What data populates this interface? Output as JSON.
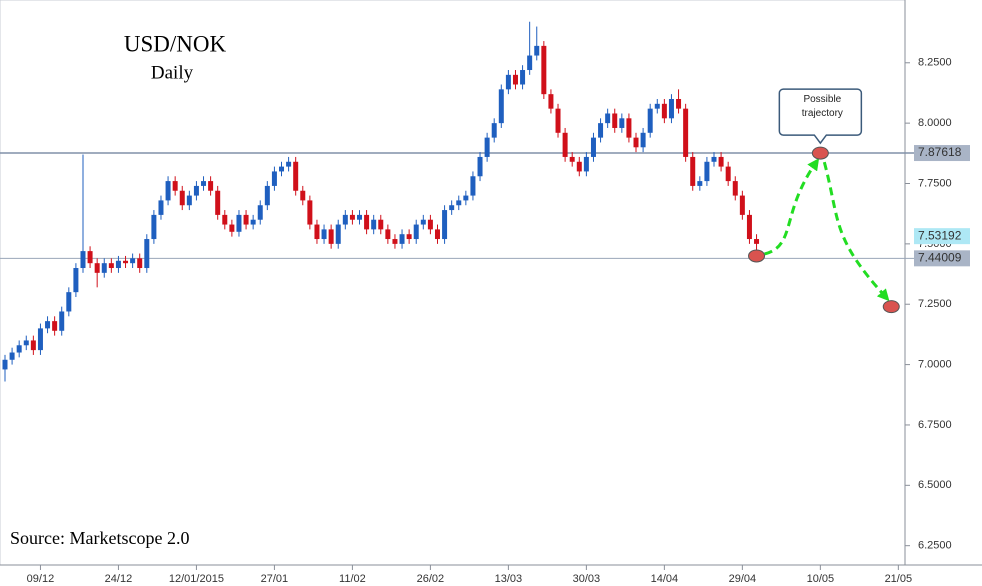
{
  "chart_data": {
    "type": "candlestick",
    "title": "USD/NOK",
    "subtitle": "Daily",
    "source": "Source: Marketscope 2.0",
    "annotation": "Possible trajectory",
    "categories": [
      null,
      null,
      null,
      null,
      null,
      "09/12",
      null,
      null,
      null,
      null,
      null,
      null,
      null,
      null,
      null,
      null,
      "24/12",
      null,
      null,
      null,
      null,
      null,
      null,
      null,
      null,
      null,
      null,
      "12/01/2015",
      null,
      null,
      null,
      null,
      null,
      null,
      null,
      null,
      null,
      null,
      "27/01",
      null,
      null,
      null,
      null,
      null,
      null,
      null,
      null,
      null,
      null,
      "11/02",
      null,
      null,
      null,
      null,
      null,
      null,
      null,
      null,
      null,
      null,
      "26/02",
      null,
      null,
      null,
      null,
      null,
      null,
      null,
      null,
      null,
      null,
      "13/03",
      null,
      null,
      null,
      null,
      null,
      null,
      null,
      null,
      null,
      null,
      "30/03",
      null,
      null,
      null,
      null,
      null,
      null,
      null,
      null,
      null,
      null,
      "14/04",
      null,
      null,
      null,
      null,
      null,
      null,
      null,
      null,
      null,
      null,
      "29/04",
      null,
      null,
      null,
      null,
      null,
      null,
      null,
      null,
      null,
      null,
      "10/05",
      null,
      null,
      null,
      null,
      null,
      null,
      null,
      null,
      null,
      null,
      "21/05"
    ],
    "open": [
      6.98,
      7.02,
      7.05,
      7.08,
      7.1,
      7.06,
      7.15,
      7.18,
      7.14,
      7.22,
      7.3,
      7.4,
      7.47,
      7.42,
      7.38,
      7.42,
      7.4,
      7.43,
      7.42,
      7.44,
      7.4,
      7.52,
      7.62,
      7.68,
      7.76,
      7.72,
      7.66,
      7.7,
      7.74,
      7.76,
      7.72,
      7.62,
      7.58,
      7.55,
      7.62,
      7.58,
      7.6,
      7.66,
      7.74,
      7.8,
      7.82,
      7.84,
      7.72,
      7.68,
      7.58,
      7.52,
      7.56,
      7.5,
      7.58,
      7.62,
      7.6,
      7.62,
      7.56,
      7.6,
      7.56,
      7.52,
      7.5,
      7.54,
      7.52,
      7.58,
      7.6,
      7.56,
      7.52,
      7.64,
      7.66,
      7.68,
      7.7,
      7.78,
      7.86,
      7.94,
      8.0,
      8.14,
      8.2,
      8.16,
      8.22,
      8.28,
      8.32,
      8.12,
      8.06,
      7.96,
      7.86,
      7.84,
      7.8,
      7.86,
      7.94,
      8.0,
      8.04,
      7.98,
      8.02,
      7.94,
      7.9,
      7.96,
      8.06,
      8.08,
      8.02,
      8.1,
      8.06,
      7.86,
      7.74,
      7.76,
      7.84,
      7.86,
      7.82,
      7.76,
      7.7,
      7.62,
      7.52,
      null,
      null,
      null,
      null,
      null,
      null,
      null,
      null,
      null,
      null,
      null,
      null,
      null,
      null,
      null,
      null,
      null,
      null,
      null,
      null
    ],
    "high": [
      7.04,
      7.07,
      7.1,
      7.12,
      7.12,
      7.17,
      7.2,
      7.2,
      7.24,
      7.32,
      7.42,
      7.87,
      7.49,
      7.44,
      7.44,
      7.44,
      7.45,
      7.45,
      7.46,
      7.46,
      7.54,
      7.64,
      7.7,
      7.78,
      7.78,
      7.74,
      7.72,
      7.76,
      7.78,
      7.78,
      7.74,
      7.64,
      7.6,
      7.64,
      7.64,
      7.62,
      7.68,
      7.76,
      7.82,
      7.84,
      7.86,
      7.86,
      7.74,
      7.7,
      7.6,
      7.58,
      7.58,
      7.6,
      7.64,
      7.64,
      7.64,
      7.64,
      7.62,
      7.62,
      7.58,
      7.54,
      7.56,
      7.56,
      7.6,
      7.62,
      7.62,
      7.58,
      7.66,
      7.68,
      7.7,
      7.72,
      7.8,
      7.88,
      7.96,
      8.02,
      8.16,
      8.22,
      8.22,
      8.24,
      8.42,
      8.4,
      8.34,
      8.14,
      8.08,
      7.98,
      7.88,
      7.86,
      7.88,
      7.96,
      8.02,
      8.06,
      8.06,
      8.04,
      8.04,
      7.96,
      7.98,
      8.08,
      8.1,
      8.1,
      8.12,
      8.14,
      8.08,
      7.88,
      7.78,
      7.86,
      7.88,
      7.88,
      7.84,
      7.78,
      7.72,
      7.64,
      7.54,
      null,
      null,
      null,
      null,
      null,
      null,
      null,
      null,
      null,
      null,
      null,
      null,
      null,
      null,
      null,
      null,
      null,
      null,
      null,
      null
    ],
    "low": [
      6.93,
      7.0,
      7.03,
      7.06,
      7.04,
      7.04,
      7.13,
      7.12,
      7.12,
      7.2,
      7.28,
      7.38,
      7.4,
      7.32,
      7.36,
      7.38,
      7.38,
      7.4,
      7.4,
      7.38,
      7.38,
      7.5,
      7.6,
      7.66,
      7.7,
      7.64,
      7.64,
      7.68,
      7.72,
      7.7,
      7.6,
      7.56,
      7.53,
      7.53,
      7.56,
      7.56,
      7.58,
      7.64,
      7.72,
      7.78,
      7.8,
      7.7,
      7.66,
      7.56,
      7.5,
      7.5,
      7.48,
      7.48,
      7.56,
      7.58,
      7.58,
      7.54,
      7.54,
      7.54,
      7.5,
      7.48,
      7.48,
      7.5,
      7.5,
      7.56,
      7.54,
      7.5,
      7.5,
      7.62,
      7.64,
      7.66,
      7.68,
      7.76,
      7.84,
      7.92,
      7.98,
      8.12,
      8.14,
      8.14,
      8.2,
      8.26,
      8.1,
      8.04,
      7.94,
      7.84,
      7.82,
      7.78,
      7.78,
      7.84,
      7.92,
      7.98,
      7.96,
      7.96,
      7.92,
      7.88,
      7.88,
      7.94,
      8.04,
      8.0,
      8.0,
      8.04,
      7.84,
      7.72,
      7.72,
      7.74,
      7.82,
      7.8,
      7.74,
      7.68,
      7.6,
      7.5,
      7.45,
      null,
      null,
      null,
      null,
      null,
      null,
      null,
      null,
      null,
      null,
      null,
      null,
      null,
      null,
      null,
      null,
      null,
      null,
      null,
      null
    ],
    "close": [
      7.02,
      7.05,
      7.08,
      7.1,
      7.06,
      7.15,
      7.18,
      7.14,
      7.22,
      7.3,
      7.4,
      7.47,
      7.42,
      7.38,
      7.42,
      7.4,
      7.43,
      7.42,
      7.44,
      7.4,
      7.52,
      7.62,
      7.68,
      7.76,
      7.72,
      7.66,
      7.7,
      7.74,
      7.76,
      7.72,
      7.62,
      7.58,
      7.55,
      7.62,
      7.58,
      7.6,
      7.66,
      7.74,
      7.8,
      7.82,
      7.84,
      7.72,
      7.68,
      7.58,
      7.52,
      7.56,
      7.5,
      7.58,
      7.62,
      7.6,
      7.62,
      7.56,
      7.6,
      7.56,
      7.52,
      7.5,
      7.54,
      7.52,
      7.58,
      7.6,
      7.56,
      7.52,
      7.64,
      7.66,
      7.68,
      7.7,
      7.78,
      7.86,
      7.94,
      8.0,
      8.14,
      8.2,
      8.16,
      8.22,
      8.28,
      8.32,
      8.12,
      8.06,
      7.96,
      7.86,
      7.84,
      7.8,
      7.86,
      7.94,
      8.0,
      8.04,
      7.98,
      8.02,
      7.94,
      7.9,
      7.96,
      8.06,
      8.08,
      8.02,
      8.1,
      8.06,
      7.86,
      7.74,
      7.76,
      7.84,
      7.86,
      7.82,
      7.76,
      7.7,
      7.62,
      7.52,
      7.5,
      null,
      null,
      null,
      null,
      null,
      null,
      null,
      null,
      null,
      null,
      null,
      null,
      null,
      null,
      null,
      null,
      null,
      null,
      null,
      null
    ],
    "up_color": "#1f5fbf",
    "down_color": "#d0101a",
    "projection": {
      "color": "#22dd22",
      "marker_color": "#d9534f",
      "values": [
        null,
        null,
        null,
        null,
        null,
        null,
        null,
        null,
        null,
        null,
        null,
        null,
        null,
        null,
        null,
        null,
        null,
        null,
        null,
        null,
        null,
        null,
        null,
        null,
        null,
        null,
        null,
        null,
        null,
        null,
        null,
        null,
        null,
        null,
        null,
        null,
        null,
        null,
        null,
        null,
        null,
        null,
        null,
        null,
        null,
        null,
        null,
        null,
        null,
        null,
        null,
        null,
        null,
        null,
        null,
        null,
        null,
        null,
        null,
        null,
        null,
        null,
        null,
        null,
        null,
        null,
        null,
        null,
        null,
        null,
        null,
        null,
        null,
        null,
        null,
        null,
        null,
        null,
        null,
        null,
        null,
        null,
        null,
        null,
        null,
        null,
        null,
        null,
        null,
        null,
        null,
        null,
        null,
        null,
        null,
        null,
        null,
        null,
        null,
        null,
        null,
        null,
        null,
        null,
        null,
        null,
        7.45,
        null,
        null,
        null,
        null,
        null,
        null,
        null,
        null,
        7.876,
        null,
        null,
        null,
        null,
        null,
        null,
        null,
        null,
        null,
        7.24,
        null
      ]
    },
    "levels": [
      {
        "value": 7.87618,
        "label": "7.87618",
        "color": "#a9b4c6",
        "line_color": "#8090a8"
      },
      {
        "value": 7.44009,
        "label": "7.44009",
        "color": "#a9b4c6",
        "line_color": "#9aa6b8"
      }
    ],
    "last_price": {
      "value": 7.53192,
      "label": "7.53192",
      "color": "#aee8f5"
    },
    "ylim": [
      6.17,
      8.51
    ],
    "yticks": [
      {
        "value": 6.25,
        "label": "6.2500"
      },
      {
        "value": 6.5,
        "label": "6.5000"
      },
      {
        "value": 6.75,
        "label": "6.7500"
      },
      {
        "value": 7,
        "label": "7.0000"
      },
      {
        "value": 7.25,
        "label": "7.2500"
      },
      {
        "value": 7.5,
        "label": "7.5000"
      },
      {
        "value": 7.75,
        "label": "7.7500"
      },
      {
        "value": 8,
        "label": "8.0000"
      },
      {
        "value": 8.25,
        "label": "8.2500"
      }
    ]
  }
}
